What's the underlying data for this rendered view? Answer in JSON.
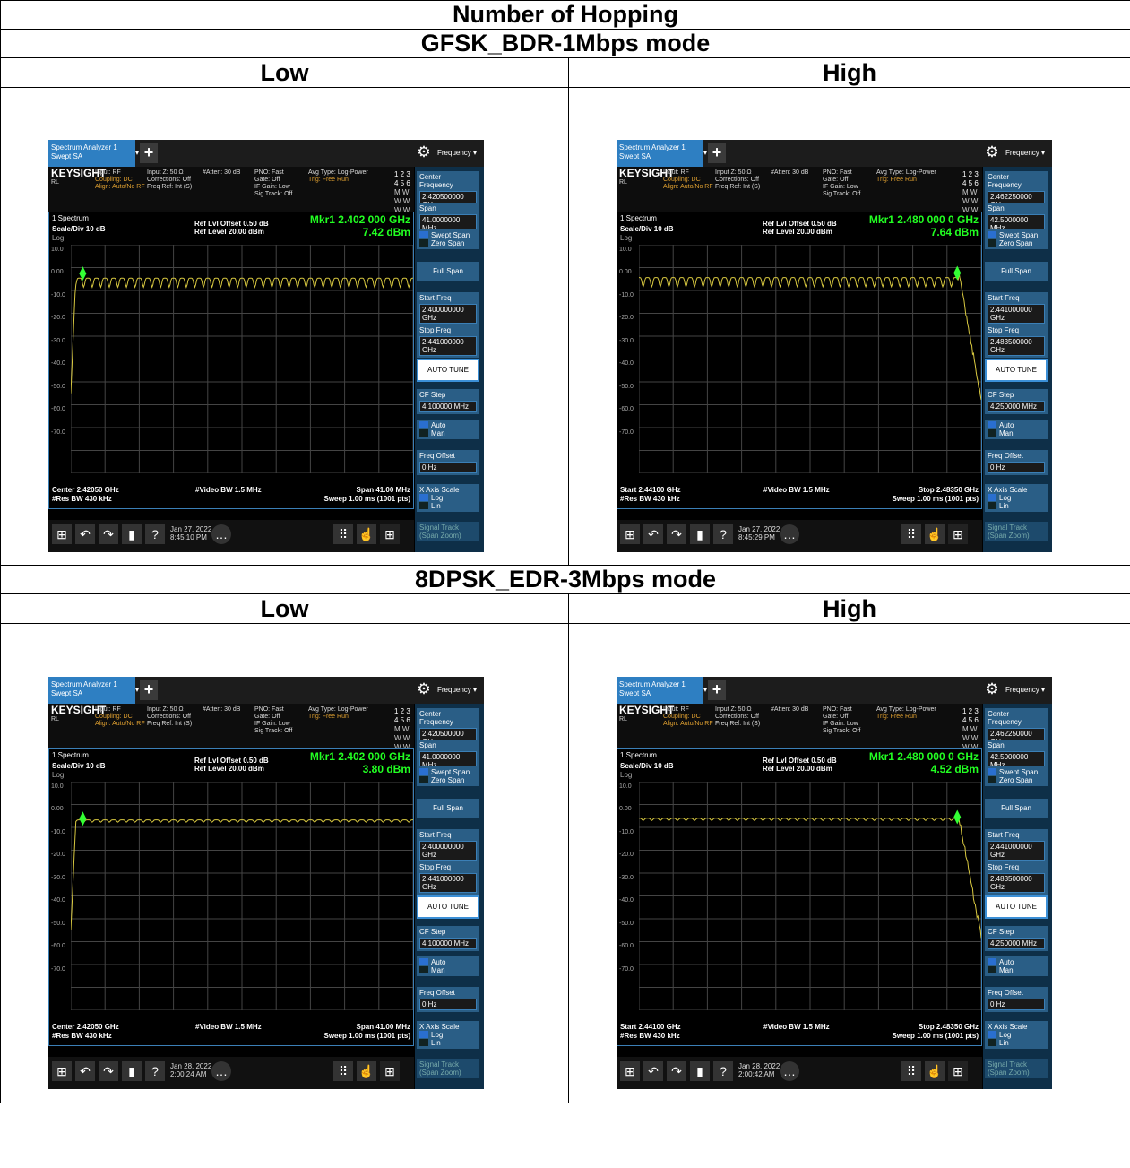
{
  "title": "Number of Hopping",
  "sections": [
    {
      "mode": "GFSK_BDR-1Mbps mode",
      "low_label": "Low",
      "high_label": "High",
      "low": {
        "tab": [
          "Spectrum Analyzer 1",
          "Swept SA"
        ],
        "mkr_freq": "Mkr1  2.402 000 GHz",
        "mkr_level": "7.42 dBm",
        "center_freq": "2.420500000 GHz",
        "span": "41.0000000 MHz",
        "start_freq": "2.400000000 GHz",
        "stop_freq": "2.441000000 GHz",
        "cf_step": "4.100000 MHz",
        "bottom_left": "Center 2.42050 GHz",
        "bottom_right": "Span 41.00 MHz",
        "sweep": "Sweep 1.00 ms (1001 pts)",
        "date": "Jan 27, 2022",
        "time": "8:45:10 PM",
        "side": "low",
        "level": 7.42
      },
      "high": {
        "tab": [
          "Spectrum Analyzer 1",
          "Swept SA"
        ],
        "mkr_freq": "Mkr1  2.480 000 0 GHz",
        "mkr_level": "7.64 dBm",
        "center_freq": "2.462250000 GHz",
        "span": "42.5000000 MHz",
        "start_freq": "2.441000000 GHz",
        "stop_freq": "2.483500000 GHz",
        "cf_step": "4.250000 MHz",
        "bottom_left": "Start 2.44100 GHz",
        "bottom_right": "Stop 2.48350 GHz",
        "sweep": "Sweep 1.00 ms (1001 pts)",
        "date": "Jan 27, 2022",
        "time": "8:45:29 PM",
        "side": "high",
        "level": 7.64
      }
    },
    {
      "mode": "8DPSK_EDR-3Mbps mode",
      "low_label": "Low",
      "high_label": "High",
      "low": {
        "tab": [
          "Spectrum Analyzer 1",
          "Swept SA"
        ],
        "mkr_freq": "Mkr1  2.402 000 GHz",
        "mkr_level": "3.80 dBm",
        "center_freq": "2.420500000 GHz",
        "span": "41.0000000 MHz",
        "start_freq": "2.400000000 GHz",
        "stop_freq": "2.441000000 GHz",
        "cf_step": "4.100000 MHz",
        "bottom_left": "Center 2.42050 GHz",
        "bottom_right": "Span 41.00 MHz",
        "sweep": "Sweep 1.00 ms (1001 pts)",
        "date": "Jan 28, 2022",
        "time": "2:00:24 AM",
        "side": "low",
        "level": 3.8
      },
      "high": {
        "tab": [
          "Spectrum Analyzer 1",
          "Swept SA"
        ],
        "mkr_freq": "Mkr1  2.480 000 0 GHz",
        "mkr_level": "4.52 dBm",
        "center_freq": "2.462250000 GHz",
        "span": "42.5000000 MHz",
        "start_freq": "2.441000000 GHz",
        "stop_freq": "2.483500000 GHz",
        "cf_step": "4.250000 MHz",
        "bottom_left": "Start 2.44100 GHz",
        "bottom_right": "Stop 2.48350 GHz",
        "sweep": "Sweep 1.00 ms (1001 pts)",
        "date": "Jan 28, 2022",
        "time": "2:00:42 AM",
        "side": "high",
        "level": 4.52
      }
    }
  ],
  "common": {
    "brand": "KEYSIGHT",
    "rl": "RL",
    "input": "Input: RF",
    "coupling": "Coupling: DC",
    "align": "Align: Auto/No RF",
    "inputz": "Input Z: 50 Ω",
    "corrections": "Corrections: Off",
    "freqref": "Freq Ref: Int (S)",
    "atten": "#Atten: 30 dB",
    "pno": "PNO: Fast",
    "gate": "Gate: Off",
    "ifgain": "IF Gain: Low",
    "sigtrack": "Sig Track: Off",
    "avgtype": "Avg Type: Log-Power",
    "trig": "Trig: Free Run",
    "trace_nums": "1 2 3 4 5 6",
    "trace_w": "M W W W W W",
    "trace_p": "P N N N N N",
    "menu": "Frequency",
    "settings": "Settings",
    "spectrum": "1 Spectrum",
    "ref_offset": "Ref Lvl Offset 0.50 dB",
    "ref_level": "Ref Level 20.00 dBm",
    "scale": "Scale/Div 10 dB",
    "log": "Log",
    "vbw": "#Video BW 1.5 MHz",
    "rbw": "#Res BW 430 kHz",
    "center_frequency": "Center Frequency",
    "span_label": "Span",
    "swept_span": "Swept Span",
    "zero_span": "Zero Span",
    "full_span": "Full Span",
    "start_freq_label": "Start Freq",
    "stop_freq_label": "Stop Freq",
    "auto_tune": "AUTO TUNE",
    "cf_step_label": "CF Step",
    "auto": "Auto",
    "man": "Man",
    "freq_offset": "Freq Offset",
    "freq_offset_val": "0 Hz",
    "x_axis_scale": "X Axis Scale",
    "log_opt": "Log",
    "lin_opt": "Lin",
    "signal_track": "Signal Track",
    "span_zoom": "(Span Zoom)",
    "y_ticks": [
      "10.0",
      "0.00",
      "-10.0",
      "-20.0",
      "-30.0",
      "-40.0",
      "-50.0",
      "-60.0",
      "-70.0"
    ]
  }
}
